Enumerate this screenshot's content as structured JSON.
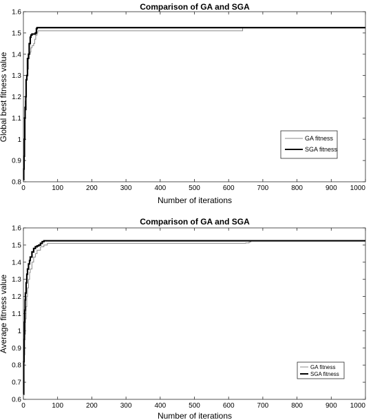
{
  "chart_data": [
    {
      "type": "line",
      "title": "Comparison of GA and SGA",
      "xlabel": "Number of iterations",
      "ylabel": "Global best fitness value",
      "xlim": [
        0,
        1000
      ],
      "ylim": [
        0.8,
        1.6
      ],
      "xticks": [
        "0",
        "100",
        "200",
        "300",
        "400",
        "500",
        "600",
        "700",
        "800",
        "900",
        "1000"
      ],
      "yticks": [
        "0.8",
        "0.9",
        "1",
        "1.1",
        "1.2",
        "1.3",
        "1.4",
        "1.5",
        "1.6"
      ],
      "legend": "right-middle",
      "grid": false,
      "series": [
        {
          "name": "GA fitness",
          "color": "#888888",
          "x": [
            0,
            1,
            2,
            3,
            4,
            5,
            7,
            9,
            11,
            13,
            15,
            17,
            20,
            22,
            25,
            28,
            30,
            33,
            36,
            40,
            42,
            45,
            100,
            300,
            500,
            600,
            640,
            641,
            700,
            1000
          ],
          "y": [
            0.82,
            0.9,
            0.98,
            1.05,
            1.12,
            1.18,
            1.24,
            1.28,
            1.3,
            1.33,
            1.38,
            1.4,
            1.41,
            1.43,
            1.44,
            1.44,
            1.45,
            1.47,
            1.49,
            1.5,
            1.51,
            1.51,
            1.51,
            1.51,
            1.51,
            1.51,
            1.51,
            1.525,
            1.525,
            1.525
          ]
        },
        {
          "name": "SGA fitness",
          "color": "#000000",
          "x": [
            0,
            1,
            2,
            3,
            4,
            5,
            6,
            7,
            8,
            10,
            12,
            13,
            15,
            17,
            20,
            22,
            25,
            30,
            35,
            38,
            40,
            45,
            100,
            500,
            1000
          ],
          "y": [
            0.81,
            0.86,
            0.92,
            1.0,
            1.1,
            1.15,
            1.14,
            1.2,
            1.28,
            1.3,
            1.38,
            1.38,
            1.4,
            1.45,
            1.48,
            1.49,
            1.495,
            1.495,
            1.5,
            1.52,
            1.525,
            1.525,
            1.525,
            1.525,
            1.525
          ]
        }
      ]
    },
    {
      "type": "line",
      "title": "Comparison of GA and SGA",
      "xlabel": "Number of iterations",
      "ylabel": "Average fitness value",
      "xlim": [
        0,
        1000
      ],
      "ylim": [
        0.6,
        1.6
      ],
      "xticks": [
        "0",
        "100",
        "200",
        "300",
        "400",
        "500",
        "600",
        "700",
        "800",
        "900",
        "1000"
      ],
      "yticks": [
        "0.6",
        "0.7",
        "0.8",
        "0.9",
        "1",
        "1.1",
        "1.2",
        "1.3",
        "1.4",
        "1.5",
        "1.6"
      ],
      "legend": "bottom-right",
      "grid": false,
      "series": [
        {
          "name": "GA fitness",
          "color": "#888888",
          "x": [
            0,
            2,
            4,
            6,
            8,
            10,
            12,
            15,
            18,
            20,
            25,
            30,
            35,
            40,
            50,
            60,
            70,
            100,
            300,
            500,
            600,
            640,
            650,
            660,
            665,
            700,
            1000
          ],
          "y": [
            0.72,
            0.86,
            0.98,
            1.07,
            1.14,
            1.2,
            1.25,
            1.3,
            1.34,
            1.36,
            1.4,
            1.43,
            1.45,
            1.47,
            1.49,
            1.5,
            1.51,
            1.51,
            1.51,
            1.51,
            1.51,
            1.51,
            1.512,
            1.518,
            1.525,
            1.525,
            1.525
          ]
        },
        {
          "name": "SGA fitness",
          "color": "#000000",
          "x": [
            0,
            1,
            2,
            3,
            4,
            5,
            6,
            8,
            10,
            12,
            15,
            18,
            20,
            25,
            30,
            35,
            40,
            45,
            50,
            55,
            60,
            80,
            100,
            500,
            1000
          ],
          "y": [
            0.63,
            0.82,
            0.95,
            1.05,
            1.12,
            1.18,
            1.22,
            1.28,
            1.33,
            1.36,
            1.39,
            1.41,
            1.43,
            1.46,
            1.48,
            1.49,
            1.495,
            1.5,
            1.51,
            1.52,
            1.525,
            1.525,
            1.525,
            1.525,
            1.525
          ]
        }
      ]
    }
  ]
}
